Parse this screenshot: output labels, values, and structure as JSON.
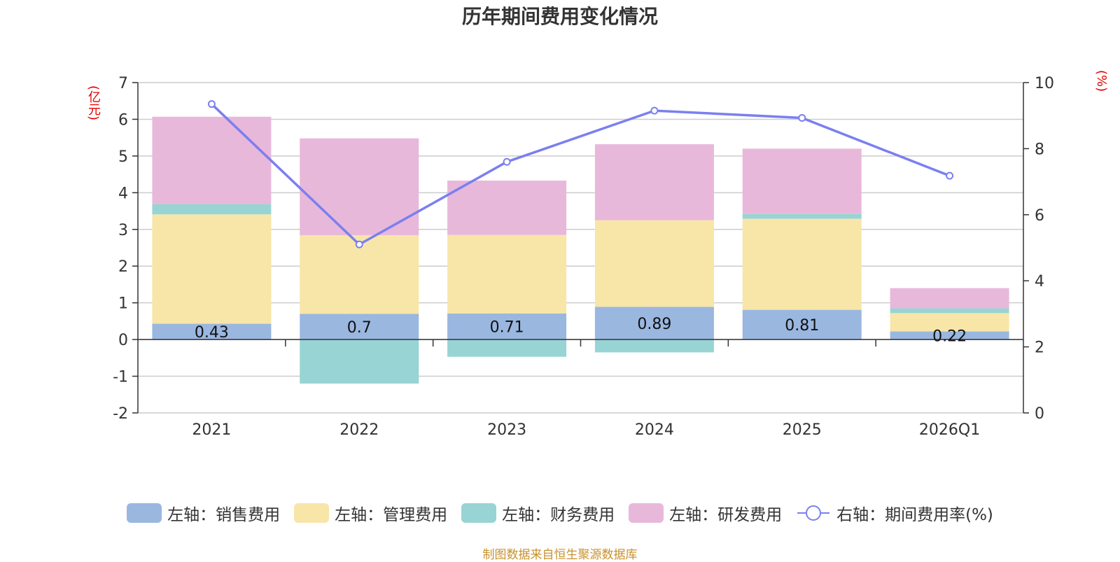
{
  "chart_data": {
    "type": "bar",
    "title": "历年期间费用变化情况",
    "left_unit": "(亿元)",
    "right_unit": "(%)",
    "categories": [
      "2021",
      "2022",
      "2023",
      "2024",
      "2025",
      "2026Q1"
    ],
    "left_axis": {
      "min": -2,
      "max": 7,
      "ticks": [
        "-2",
        "-1",
        "0",
        "1",
        "2",
        "3",
        "4",
        "5",
        "6",
        "7"
      ]
    },
    "right_axis": {
      "min": 0,
      "max": 10,
      "ticks": [
        "0",
        "2",
        "4",
        "6",
        "8",
        "10"
      ]
    },
    "series": [
      {
        "name": "左轴：销售费用",
        "axis": "left",
        "type": "bar",
        "color": "#9ab7e0",
        "values": [
          0.43,
          0.7,
          0.71,
          0.89,
          0.81,
          0.22
        ],
        "labels": [
          "0.43",
          "0.7",
          "0.71",
          "0.89",
          "0.81",
          "0.22"
        ]
      },
      {
        "name": "左轴：管理费用",
        "axis": "left",
        "type": "bar",
        "color": "#f8e6a8",
        "values": [
          2.98,
          2.14,
          2.14,
          2.36,
          2.48,
          0.5
        ]
      },
      {
        "name": "左轴：财务费用",
        "axis": "left",
        "type": "bar",
        "color": "#98d4d4",
        "values": [
          0.28,
          -1.2,
          -0.47,
          -0.35,
          0.13,
          0.13
        ]
      },
      {
        "name": "左轴：研发费用",
        "axis": "left",
        "type": "bar",
        "color": "#e8b8da",
        "values": [
          2.38,
          2.64,
          1.48,
          2.07,
          1.78,
          0.55
        ]
      },
      {
        "name": "右轴：期间费用率(%)",
        "axis": "right",
        "type": "line",
        "color": "#7b7ff0",
        "values": [
          9.35,
          5.1,
          7.6,
          9.15,
          8.93,
          7.18
        ]
      }
    ],
    "grid": true,
    "legend_position": "bottom-center"
  },
  "footer": {
    "source": "制图数据来自恒生聚源数据库"
  }
}
